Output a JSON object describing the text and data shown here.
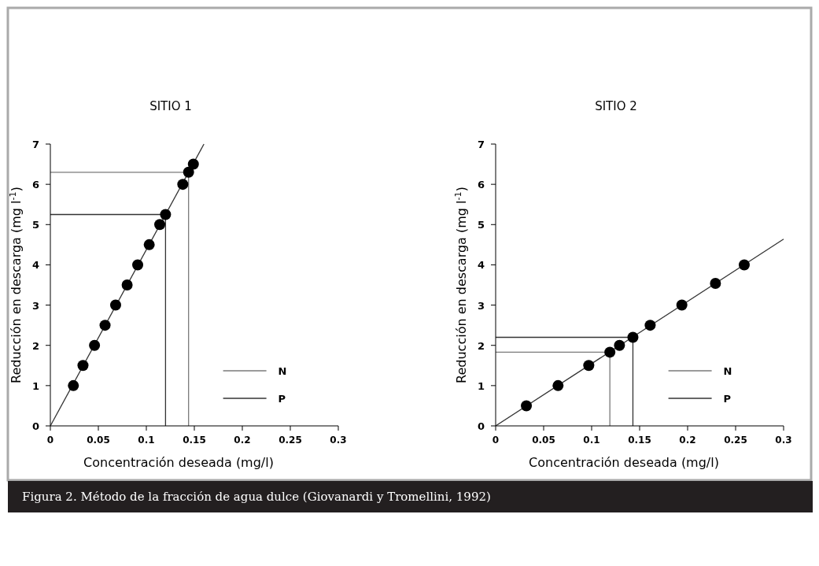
{
  "chart_data": [
    {
      "type": "scatter",
      "title": "SITIO 1",
      "xlabel": "Concentración deseada (mg/l)",
      "ylabel": "Reducción en descarga (mg l$^{-1}$)",
      "xlim": [
        0,
        0.3
      ],
      "ylim": [
        0,
        7
      ],
      "xticks": [
        0,
        0.05,
        0.1,
        0.15,
        0.2,
        0.25,
        0.3
      ],
      "yticks": [
        0,
        1,
        2,
        3,
        4,
        5,
        6,
        7
      ],
      "grid": false,
      "legend": "bottom right",
      "series": [
        {
          "marker": "circle",
          "color": "#000000",
          "x": [
            0.024,
            0.034,
            0.046,
            0.057,
            0.068,
            0.08,
            0.091,
            0.103,
            0.114,
            0.12,
            0.138,
            0.144,
            0.149
          ],
          "values": [
            1,
            1.5,
            2,
            2.5,
            3,
            3.5,
            4,
            4.5,
            5,
            5.25,
            6,
            6.3,
            6.5
          ]
        },
        {
          "type": "line",
          "marker": "none",
          "color": "#333333",
          "x": [
            0,
            0.16
          ],
          "values": [
            0,
            7
          ]
        },
        {
          "type": "line",
          "marker": "none",
          "name": "N",
          "color": "#7a7a7a",
          "x": [
            0,
            0.144,
            0.144
          ],
          "values": [
            6.3,
            6.3,
            0
          ]
        },
        {
          "type": "line",
          "marker": "none",
          "name": "P",
          "color": "#333333",
          "x": [
            0,
            0.12,
            0.12
          ],
          "values": [
            5.25,
            5.25,
            0
          ]
        }
      ],
      "annotations": [
        "Figura 2. Método de la fracción de agua dulce (Giovanardi y Tromellini, 1992)"
      ]
    },
    {
      "type": "scatter",
      "title": "SITIO 2",
      "xlabel": "Concentración deseada (mg/l)",
      "ylabel": "Reducción en descarga (mg l$^{-1}$)",
      "xlim": [
        0,
        0.3
      ],
      "ylim": [
        0,
        7
      ],
      "xticks": [
        0,
        0.05,
        0.1,
        0.15,
        0.2,
        0.25,
        0.3
      ],
      "yticks": [
        0,
        1,
        2,
        3,
        4,
        5,
        6,
        7
      ],
      "grid": false,
      "legend": "bottom right",
      "series": [
        {
          "marker": "circle",
          "color": "#000000",
          "x": [
            0.032,
            0.065,
            0.097,
            0.119,
            0.129,
            0.143,
            0.161,
            0.194,
            0.229,
            0.259
          ],
          "values": [
            0.5,
            1,
            1.5,
            1.83,
            2,
            2.2,
            2.5,
            3,
            3.54,
            4
          ]
        },
        {
          "type": "line",
          "marker": "none",
          "color": "#333333",
          "x": [
            0,
            0.3
          ],
          "values": [
            0,
            4.64
          ]
        },
        {
          "type": "line",
          "marker": "none",
          "name": "N",
          "color": "#7a7a7a",
          "x": [
            0,
            0.119,
            0.119
          ],
          "values": [
            1.83,
            1.83,
            0
          ]
        },
        {
          "type": "line",
          "marker": "none",
          "name": "P",
          "color": "#333333",
          "x": [
            0,
            0.143,
            0.143
          ],
          "values": [
            2.2,
            2.2,
            0
          ]
        }
      ]
    }
  ]
}
